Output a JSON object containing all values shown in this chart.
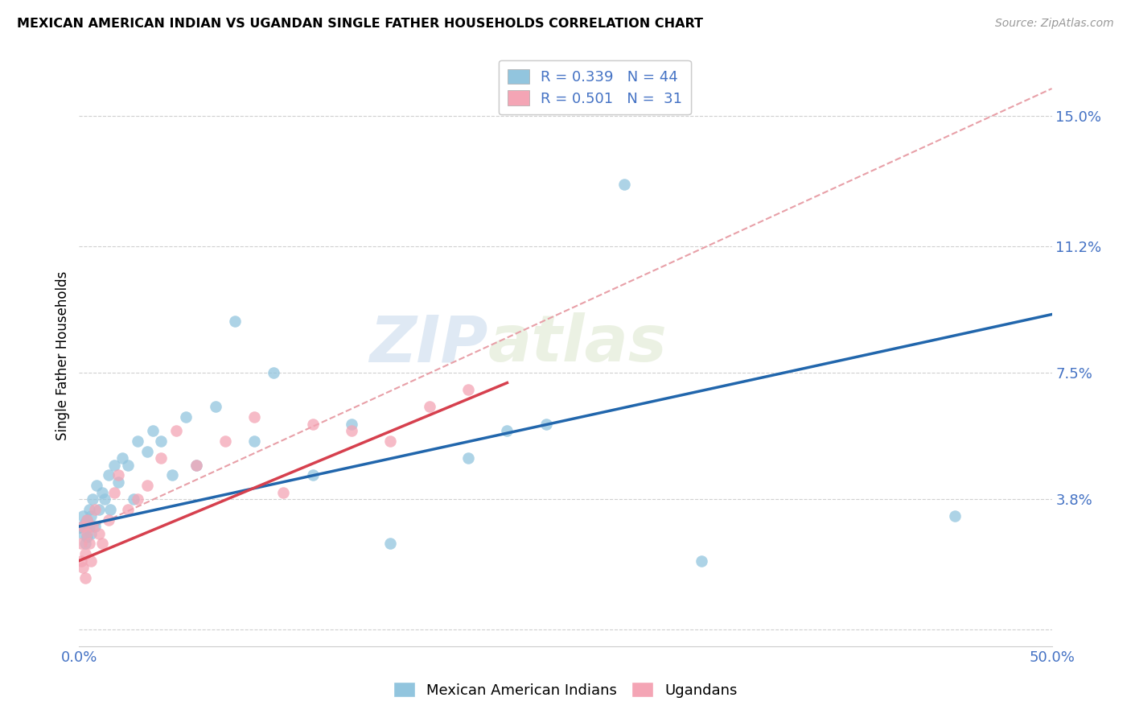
{
  "title": "MEXICAN AMERICAN INDIAN VS UGANDAN SINGLE FATHER HOUSEHOLDS CORRELATION CHART",
  "source": "Source: ZipAtlas.com",
  "ylabel": "Single Father Households",
  "xlim": [
    0.0,
    0.5
  ],
  "ylim": [
    -0.005,
    0.165
  ],
  "yticks": [
    0.0,
    0.038,
    0.075,
    0.112,
    0.15
  ],
  "ytick_labels": [
    "",
    "3.8%",
    "7.5%",
    "11.2%",
    "15.0%"
  ],
  "xticks": [
    0.0,
    0.1,
    0.2,
    0.3,
    0.4,
    0.5
  ],
  "xtick_labels": [
    "0.0%",
    "",
    "",
    "",
    "",
    "50.0%"
  ],
  "watermark_zip": "ZIP",
  "watermark_atlas": "atlas",
  "blue_color": "#92c5de",
  "pink_color": "#f4a5b5",
  "blue_line_color": "#2166ac",
  "pink_line_color": "#d6404e",
  "dashed_line_color": "#e8a0a8",
  "legend_R_blue": "0.339",
  "legend_N_blue": "44",
  "legend_R_pink": "0.501",
  "legend_N_pink": "31",
  "blue_label": "Mexican American Indians",
  "pink_label": "Ugandans",
  "blue_scatter_x": [
    0.001,
    0.002,
    0.002,
    0.003,
    0.003,
    0.004,
    0.004,
    0.005,
    0.005,
    0.006,
    0.006,
    0.007,
    0.008,
    0.009,
    0.01,
    0.012,
    0.013,
    0.015,
    0.016,
    0.018,
    0.02,
    0.022,
    0.025,
    0.028,
    0.03,
    0.035,
    0.038,
    0.042,
    0.048,
    0.055,
    0.06,
    0.07,
    0.08,
    0.09,
    0.1,
    0.12,
    0.14,
    0.16,
    0.2,
    0.22,
    0.24,
    0.28,
    0.32,
    0.45
  ],
  "blue_scatter_y": [
    0.03,
    0.028,
    0.033,
    0.031,
    0.025,
    0.032,
    0.027,
    0.03,
    0.035,
    0.028,
    0.033,
    0.038,
    0.03,
    0.042,
    0.035,
    0.04,
    0.038,
    0.045,
    0.035,
    0.048,
    0.043,
    0.05,
    0.048,
    0.038,
    0.055,
    0.052,
    0.058,
    0.055,
    0.045,
    0.062,
    0.048,
    0.065,
    0.09,
    0.055,
    0.075,
    0.045,
    0.06,
    0.025,
    0.05,
    0.058,
    0.06,
    0.13,
    0.02,
    0.033
  ],
  "pink_scatter_x": [
    0.001,
    0.001,
    0.002,
    0.002,
    0.003,
    0.003,
    0.004,
    0.004,
    0.005,
    0.006,
    0.007,
    0.008,
    0.01,
    0.012,
    0.015,
    0.018,
    0.02,
    0.025,
    0.03,
    0.035,
    0.042,
    0.05,
    0.06,
    0.075,
    0.09,
    0.105,
    0.12,
    0.14,
    0.16,
    0.18,
    0.2
  ],
  "pink_scatter_y": [
    0.02,
    0.025,
    0.018,
    0.03,
    0.022,
    0.015,
    0.028,
    0.032,
    0.025,
    0.02,
    0.03,
    0.035,
    0.028,
    0.025,
    0.032,
    0.04,
    0.045,
    0.035,
    0.038,
    0.042,
    0.05,
    0.058,
    0.048,
    0.055,
    0.062,
    0.04,
    0.06,
    0.058,
    0.055,
    0.065,
    0.07
  ],
  "blue_trend_x": [
    0.0,
    0.5
  ],
  "blue_trend_y": [
    0.03,
    0.092
  ],
  "pink_trend_x": [
    0.0,
    0.22
  ],
  "pink_trend_y": [
    0.02,
    0.072
  ],
  "dashed_trend_x": [
    0.0,
    0.5
  ],
  "dashed_trend_y": [
    0.028,
    0.158
  ]
}
